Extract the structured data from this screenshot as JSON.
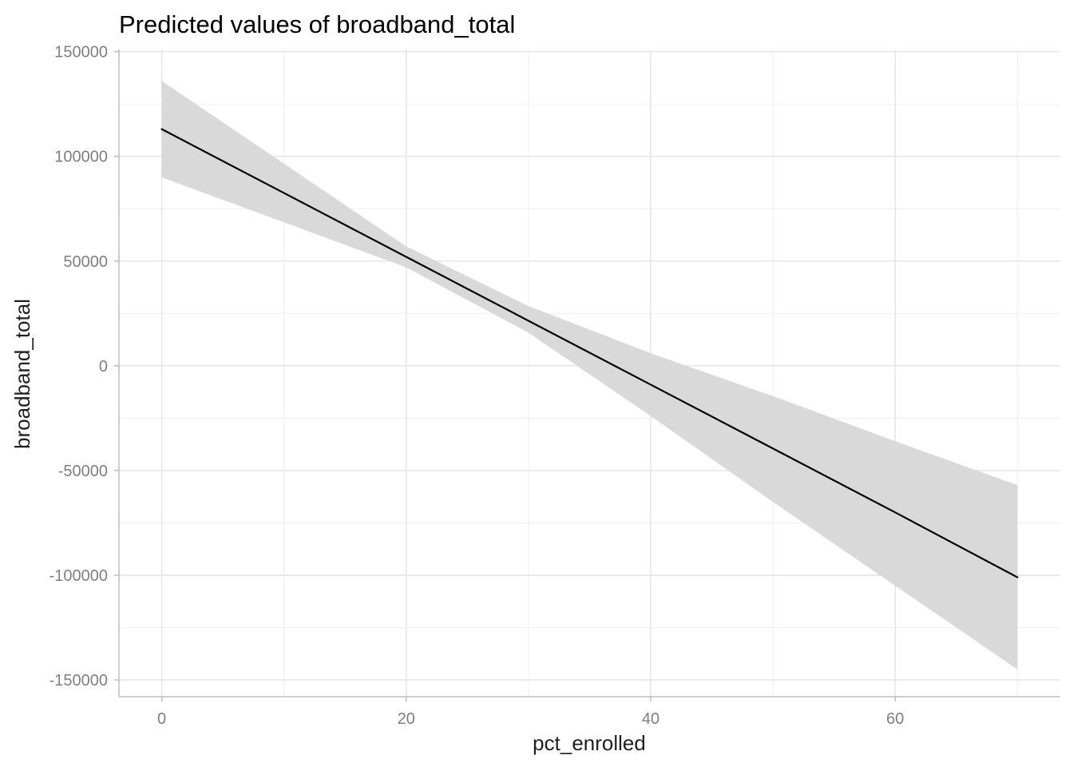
{
  "chart_data": {
    "type": "line",
    "title": "Predicted values of broadband_total",
    "xlabel": "pct_enrolled",
    "ylabel": "broadband_total",
    "xlim": [
      -3.5,
      73.5
    ],
    "ylim": [
      -158000,
      151000
    ],
    "x_ticks": [
      0,
      20,
      40,
      60
    ],
    "x_tick_labels": [
      "0",
      "20",
      "40",
      "60"
    ],
    "y_ticks": [
      -150000,
      -100000,
      -50000,
      0,
      50000,
      100000,
      150000
    ],
    "y_tick_labels": [
      "-150000",
      "-100000",
      "-50000",
      "0",
      "50000",
      "100000",
      "150000"
    ],
    "grid": true,
    "legend": "none",
    "series": [
      {
        "x": [
          0,
          10,
          20,
          30,
          40,
          50,
          60,
          70
        ],
        "y": [
          113000,
          82500,
          52000,
          21500,
          -9000,
          -39500,
          -70000,
          -101000
        ],
        "ci_lower": [
          90000,
          68500,
          47000,
          15800,
          -24000,
          -65000,
          -105000,
          -145000
        ],
        "ci_upper": [
          136000,
          96500,
          57000,
          28500,
          6000,
          -14500,
          -36000,
          -57000
        ],
        "line_color": "#000000",
        "band_color": "#d9d9d9"
      }
    ]
  }
}
